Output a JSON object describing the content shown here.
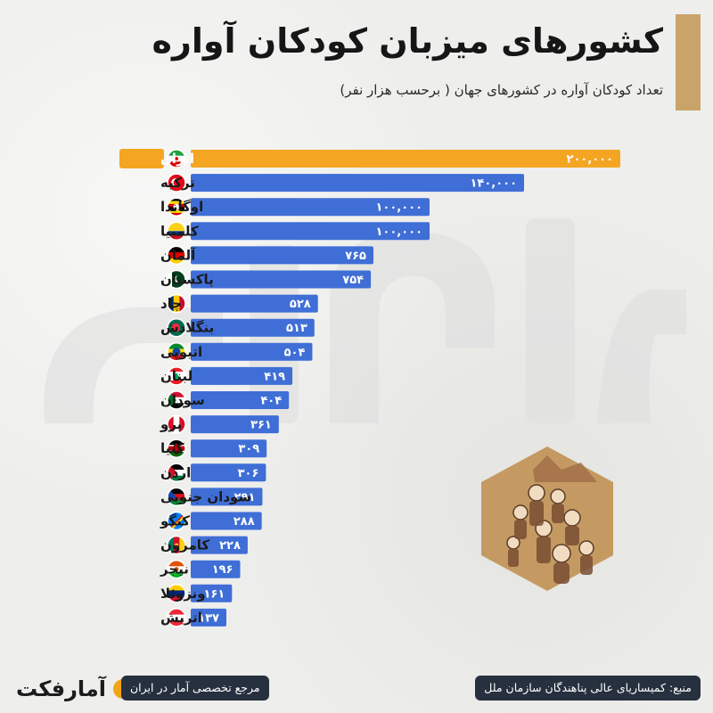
{
  "title": "کشورهای میزبان کودکان آواره",
  "subtitle": "تعداد کودکان آواره در کشورهای جهان ( برحسب هزار نفر)",
  "colors": {
    "highlight": "#f4a623",
    "bar": "#3f6ed6",
    "accent": "#c9a46a",
    "pill": "#26303f"
  },
  "chart_data": {
    "type": "bar",
    "orientation": "horizontal",
    "categories": [
      "ایران",
      "ترکیه",
      "اوگاندا",
      "کلمبیا",
      "آلمان",
      "پاکستان",
      "چاد",
      "بنگلادش",
      "اتیوپی",
      "لبنان",
      "سودان",
      "پرو",
      "کنیا",
      "اردن",
      "سودان جنوبی",
      "کنگو",
      "کامرون",
      "نیجر",
      "ونزوئلا",
      "اتریش"
    ],
    "values": [
      200000,
      140000,
      100000,
      100000,
      765,
      754,
      528,
      513,
      504,
      419,
      404,
      361,
      309,
      306,
      291,
      288,
      228,
      196,
      161,
      137
    ],
    "value_labels": [
      "۲۰۰,۰۰۰",
      "۱۴۰,۰۰۰",
      "۱۰۰,۰۰۰",
      "۱۰۰,۰۰۰",
      "۷۶۵",
      "۷۵۴",
      "۵۲۸",
      "۵۱۳",
      "۵۰۴",
      "۴۱۹",
      "۴۰۴",
      "۳۶۱",
      "۳۰۹",
      "۳۰۶",
      "۲۹۱",
      "۲۸۸",
      "۲۲۸",
      "۱۹۶",
      "۱۶۱",
      "۱۳۷"
    ],
    "highlight_index": 0,
    "flags": [
      "iran-flag",
      "turkey-flag",
      "uganda-flag",
      "colombia-flag",
      "germany-flag",
      "pakistan-flag",
      "chad-flag",
      "bangladesh-flag",
      "ethiopia-flag",
      "lebanon-flag",
      "sudan-flag",
      "peru-flag",
      "kenya-flag",
      "jordan-flag",
      "south-sudan-flag",
      "congo-flag",
      "cameroon-flag",
      "niger-flag",
      "venezuela-flag",
      "austria-flag"
    ],
    "xlabel": "",
    "ylabel": "",
    "grid": false,
    "legend": "none"
  },
  "illustration": {
    "icon": "displaced-children-illustration"
  },
  "footer": {
    "brand_name": "آمارفکت",
    "tagline": "مرجع تخصصی آمار در ایران",
    "source": "منبع: کمیساریای عالی پناهندگان سازمان ملل"
  }
}
